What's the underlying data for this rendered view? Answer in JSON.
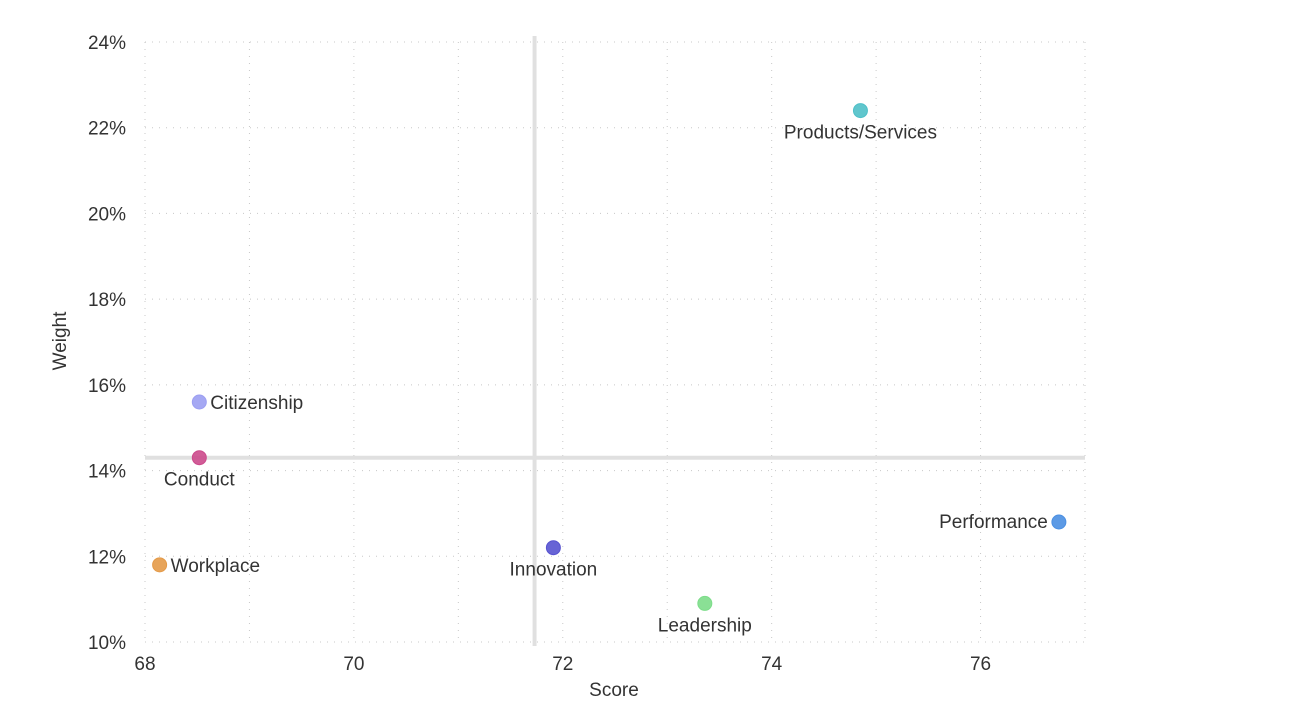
{
  "chart_data": {
    "type": "scatter",
    "title": "",
    "xlabel": "Score",
    "ylabel": "Weight",
    "xlim": [
      68,
      77
    ],
    "ylim": [
      10,
      24
    ],
    "x_ticks": [
      68,
      70,
      72,
      74,
      76
    ],
    "x_tick_labels": [
      "68",
      "70",
      "72",
      "74",
      "76"
    ],
    "y_ticks": [
      10,
      12,
      14,
      16,
      18,
      20,
      22,
      24
    ],
    "y_tick_labels": [
      "10%",
      "12%",
      "14%",
      "16%",
      "18%",
      "20%",
      "22%",
      "24%"
    ],
    "grid": true,
    "reference_lines": {
      "x": 71.73,
      "y": 14.3
    },
    "points": [
      {
        "label": "Products/Services",
        "x": 74.85,
        "y": 22.4,
        "color": "#4fc0c8",
        "label_pos": "below"
      },
      {
        "label": "Citizenship",
        "x": 68.52,
        "y": 15.6,
        "color": "#9b9ef2",
        "label_pos": "right"
      },
      {
        "label": "Conduct",
        "x": 68.52,
        "y": 14.3,
        "color": "#cc4a8c",
        "label_pos": "below"
      },
      {
        "label": "Workplace",
        "x": 68.14,
        "y": 11.8,
        "color": "#e49a48",
        "label_pos": "right"
      },
      {
        "label": "Innovation",
        "x": 71.91,
        "y": 12.2,
        "color": "#5753d0",
        "label_pos": "below"
      },
      {
        "label": "Leadership",
        "x": 73.36,
        "y": 10.9,
        "color": "#7ddd8a",
        "label_pos": "below"
      },
      {
        "label": "Performance",
        "x": 76.75,
        "y": 12.8,
        "color": "#4a8fe2",
        "label_pos": "left"
      }
    ]
  }
}
